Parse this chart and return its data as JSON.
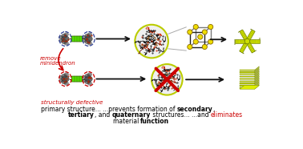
{
  "background_color": "#ffffff",
  "caption_line1_parts": [
    {
      "text": "primary structure... ",
      "bold": false,
      "color": "#000000"
    },
    {
      "text": "...prevents formation of ",
      "bold": false,
      "color": "#000000"
    },
    {
      "text": "secondary",
      "bold": true,
      "color": "#000000"
    },
    {
      "text": ",",
      "bold": false,
      "color": "#000000"
    }
  ],
  "caption_line2_parts": [
    {
      "text": "tertiary",
      "bold": true,
      "color": "#000000"
    },
    {
      "text": ", and ",
      "bold": false,
      "color": "#000000"
    },
    {
      "text": "quaternary",
      "bold": true,
      "color": "#000000"
    },
    {
      "text": " structures... ...and ",
      "bold": false,
      "color": "#000000"
    },
    {
      "text": "eliminates",
      "bold": false,
      "color": "#cc0000"
    }
  ],
  "caption_line3_parts": [
    {
      "text": "material ",
      "bold": false,
      "color": "#000000"
    },
    {
      "text": "function",
      "bold": true,
      "color": "#000000"
    }
  ],
  "red_label_1": "structurally defective",
  "red_label_2_line1": "remove",
  "red_label_2_line2": "minidendron",
  "arrow_color": "#111111",
  "red_color": "#cc0000",
  "blue_dash_color": "#334499",
  "red_dash_color": "#cc0000",
  "yg_circle_color": "#bbcc00",
  "cube_edge_color": "#222222",
  "cube_node_color": "#eedd00",
  "lime_color": "#ccdd00",
  "lime_dark": "#99aa00",
  "lime_mid": "#aabb00",
  "fig_width": 3.78,
  "fig_height": 1.86,
  "dpi": 100
}
